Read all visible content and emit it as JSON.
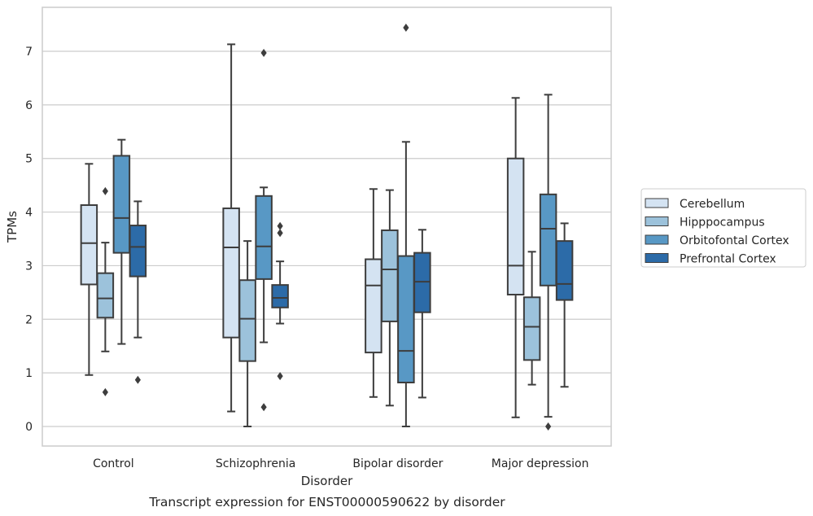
{
  "caption": "Transcript expression for ENST00000590622 by disorder",
  "chart_data": {
    "type": "box",
    "xlabel": "Disorder",
    "ylabel": "TPMs",
    "ylim": [
      -0.35,
      7.85
    ],
    "yticks": [
      0,
      1,
      2,
      3,
      4,
      5,
      6,
      7
    ],
    "grid": "horizontal",
    "legend_placement": "right",
    "categories": [
      "Control",
      "Schizophrenia",
      "Bipolar disorder",
      "Major depression"
    ],
    "series": [
      {
        "name": "Cerebellum",
        "color": "#d4e3f2",
        "boxes": [
          {
            "whislo": 0.96,
            "q1": 2.65,
            "med": 3.42,
            "q3": 4.13,
            "whishi": 4.9,
            "fliers": []
          },
          {
            "whislo": 0.28,
            "q1": 1.66,
            "med": 3.34,
            "q3": 4.07,
            "whishi": 7.13,
            "fliers": []
          },
          {
            "whislo": 0.55,
            "q1": 1.38,
            "med": 2.63,
            "q3": 3.12,
            "whishi": 4.43,
            "fliers": []
          },
          {
            "whislo": 0.17,
            "q1": 2.46,
            "med": 3.0,
            "q3": 5.0,
            "whishi": 6.13,
            "fliers": []
          }
        ]
      },
      {
        "name": "Hipppocampus",
        "color": "#9cc2db",
        "boxes": [
          {
            "whislo": 1.4,
            "q1": 2.03,
            "med": 2.39,
            "q3": 2.86,
            "whishi": 3.43,
            "fliers": [
              4.39,
              0.64
            ]
          },
          {
            "whislo": 0.0,
            "q1": 1.22,
            "med": 2.01,
            "q3": 2.73,
            "whishi": 3.46,
            "fliers": []
          },
          {
            "whislo": 0.39,
            "q1": 1.96,
            "med": 2.93,
            "q3": 3.66,
            "whishi": 4.41,
            "fliers": []
          },
          {
            "whislo": 0.78,
            "q1": 1.24,
            "med": 1.86,
            "q3": 2.41,
            "whishi": 3.26,
            "fliers": []
          }
        ]
      },
      {
        "name": "Orbitofontal Cortex",
        "color": "#5898c5",
        "boxes": [
          {
            "whislo": 1.54,
            "q1": 3.24,
            "med": 3.89,
            "q3": 5.05,
            "whishi": 5.35,
            "fliers": []
          },
          {
            "whislo": 1.57,
            "q1": 2.75,
            "med": 3.36,
            "q3": 4.3,
            "whishi": 4.46,
            "fliers": [
              6.97,
              0.36
            ]
          },
          {
            "whislo": 0.0,
            "q1": 0.82,
            "med": 1.41,
            "q3": 3.18,
            "whishi": 5.31,
            "fliers": [
              7.44
            ]
          },
          {
            "whislo": 0.18,
            "q1": 2.63,
            "med": 3.69,
            "q3": 4.33,
            "whishi": 6.19,
            "fliers": [
              0.0
            ]
          }
        ]
      },
      {
        "name": "Prefrontal Cortex",
        "color": "#2c6ba8",
        "boxes": [
          {
            "whislo": 1.66,
            "q1": 2.8,
            "med": 3.35,
            "q3": 3.75,
            "whishi": 4.2,
            "fliers": [
              0.87
            ]
          },
          {
            "whislo": 1.92,
            "q1": 2.22,
            "med": 2.4,
            "q3": 2.64,
            "whishi": 3.08,
            "fliers": [
              3.74,
              3.61,
              0.94
            ]
          },
          {
            "whislo": 0.54,
            "q1": 2.13,
            "med": 2.7,
            "q3": 3.24,
            "whishi": 3.67,
            "fliers": []
          },
          {
            "whislo": 0.74,
            "q1": 2.36,
            "med": 2.66,
            "q3": 3.46,
            "whishi": 3.79,
            "fliers": []
          }
        ]
      }
    ]
  }
}
